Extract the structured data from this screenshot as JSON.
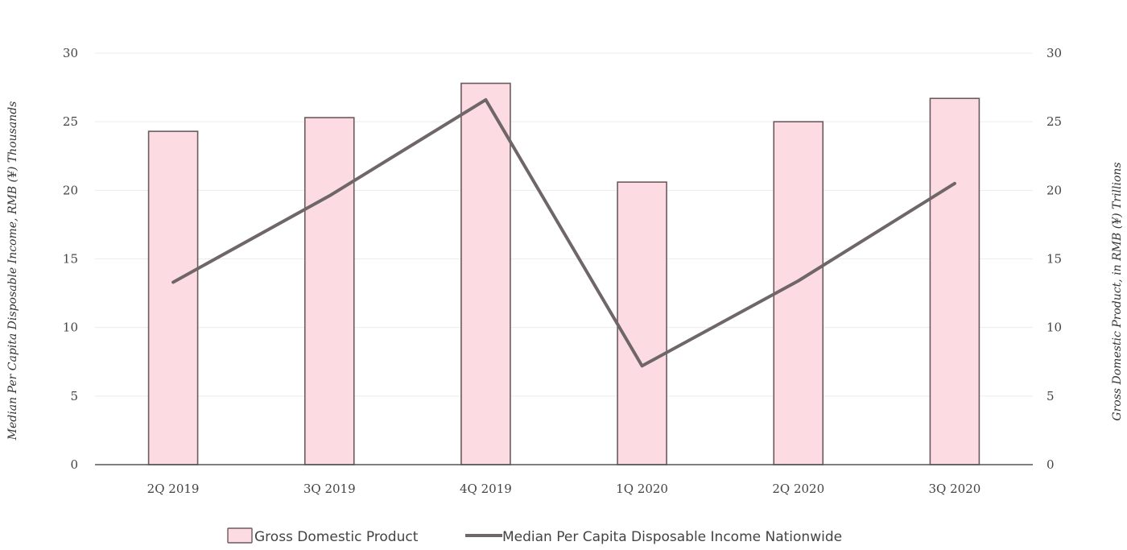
{
  "chart_data": {
    "type": "bar",
    "categories": [
      "2Q 2019",
      "3Q 2019",
      "4Q 2019",
      "1Q 2020",
      "2Q 2020",
      "3Q 2020"
    ],
    "series": [
      {
        "name": "Gross Domestic Product",
        "type": "bar",
        "axis": "right",
        "values": [
          24.3,
          25.3,
          27.8,
          20.6,
          25.0,
          26.7
        ]
      },
      {
        "name": "Median Per Capita Disposable Income Nationwide",
        "type": "line",
        "axis": "left",
        "values": [
          13.3,
          19.6,
          26.6,
          7.2,
          13.4,
          20.5
        ]
      }
    ],
    "ylabel": "Median Per Capita Disposable Income, RMB (¥) Thousands",
    "y2label": "Gross Domestic Product, in RMB (¥) Trillions",
    "ylim": [
      0,
      30
    ],
    "y2lim": [
      0,
      30
    ],
    "yticks": [
      0,
      5,
      10,
      15,
      20,
      25,
      30
    ],
    "grid": true,
    "legend_position": "bottom-center",
    "colors": {
      "bar_fill": "#fddbe2",
      "bar_stroke": "#6b5a5e",
      "line": "#6e6668",
      "grid": "#ececec",
      "axis": "#555555"
    }
  }
}
